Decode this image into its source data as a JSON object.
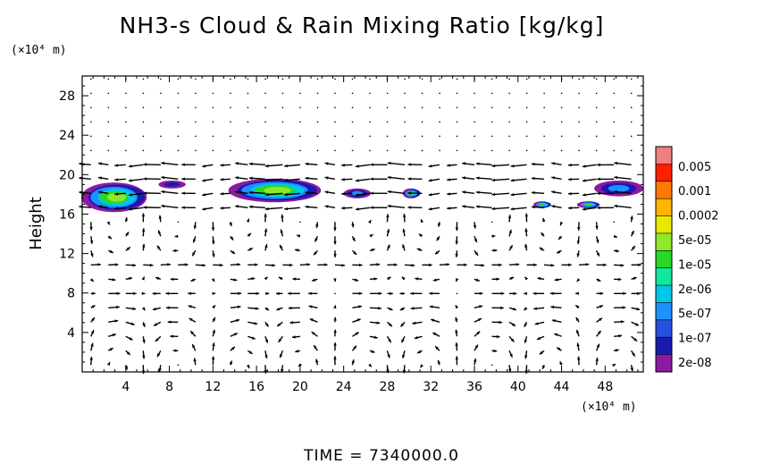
{
  "chart_data": {
    "type": "heatmap",
    "title": "NH3-s Cloud & Rain Mixing Ratio [kg/kg]",
    "ylabel": "Height",
    "xunit": "(×10⁴ m)",
    "yunit": "(×10⁴ m)",
    "footer": "TIME = 7340000.0",
    "xlim": [
      0,
      51.5
    ],
    "ylim": [
      0,
      30
    ],
    "x_ticks": [
      4,
      8,
      12,
      16,
      20,
      24,
      28,
      32,
      36,
      40,
      44,
      48
    ],
    "x_tick_labels": [
      "4",
      "8",
      "12",
      "16",
      "20",
      "24",
      "28",
      "32",
      "36",
      "40",
      "44",
      "48"
    ],
    "y_ticks": [
      4,
      8,
      12,
      16,
      20,
      24,
      28
    ],
    "y_tick_labels": [
      "4",
      "8",
      "12",
      "16",
      "20",
      "24",
      "28"
    ],
    "colorbar": {
      "colors": [
        "#8b1aa0",
        "#1a1ab0",
        "#2850e0",
        "#1e90ff",
        "#00c8e8",
        "#10e8a0",
        "#28d828",
        "#90e828",
        "#e8e800",
        "#ffb400",
        "#ff7800",
        "#ff2000",
        "#f08080"
      ],
      "labels": [
        "2e-08",
        "1e-07",
        "5e-07",
        "2e-06",
        "1e-05",
        "5e-05",
        "0.0002",
        "0.001",
        "0.005"
      ]
    },
    "cloud_regions": [
      {
        "x": [
          0,
          6
        ],
        "y": [
          16.2,
          19.2
        ],
        "peak": "5e-05"
      },
      {
        "x": [
          7,
          9.5
        ],
        "y": [
          18.6,
          19.4
        ],
        "peak": "1e-07"
      },
      {
        "x": [
          13.5,
          22
        ],
        "y": [
          17.2,
          19.6
        ],
        "peak": "5e-05"
      },
      {
        "x": [
          24,
          26.5
        ],
        "y": [
          17.6,
          18.6
        ],
        "peak": "5e-07"
      },
      {
        "x": [
          29.5,
          31
        ],
        "y": [
          17.6,
          18.6
        ],
        "peak": "1e-05"
      },
      {
        "x": [
          41.5,
          43
        ],
        "y": [
          16.6,
          17.3
        ],
        "peak": "1e-05"
      },
      {
        "x": [
          45.5,
          47.5
        ],
        "y": [
          16.6,
          17.3
        ],
        "peak": "1e-05"
      },
      {
        "x": [
          47,
          51.5
        ],
        "y": [
          17.8,
          19.4
        ],
        "peak": "5e-07"
      }
    ],
    "wind_vectors": "velocity field drawn as arrows over the domain; wavy circulation cells below ~16 and westward flow near 17-20"
  }
}
